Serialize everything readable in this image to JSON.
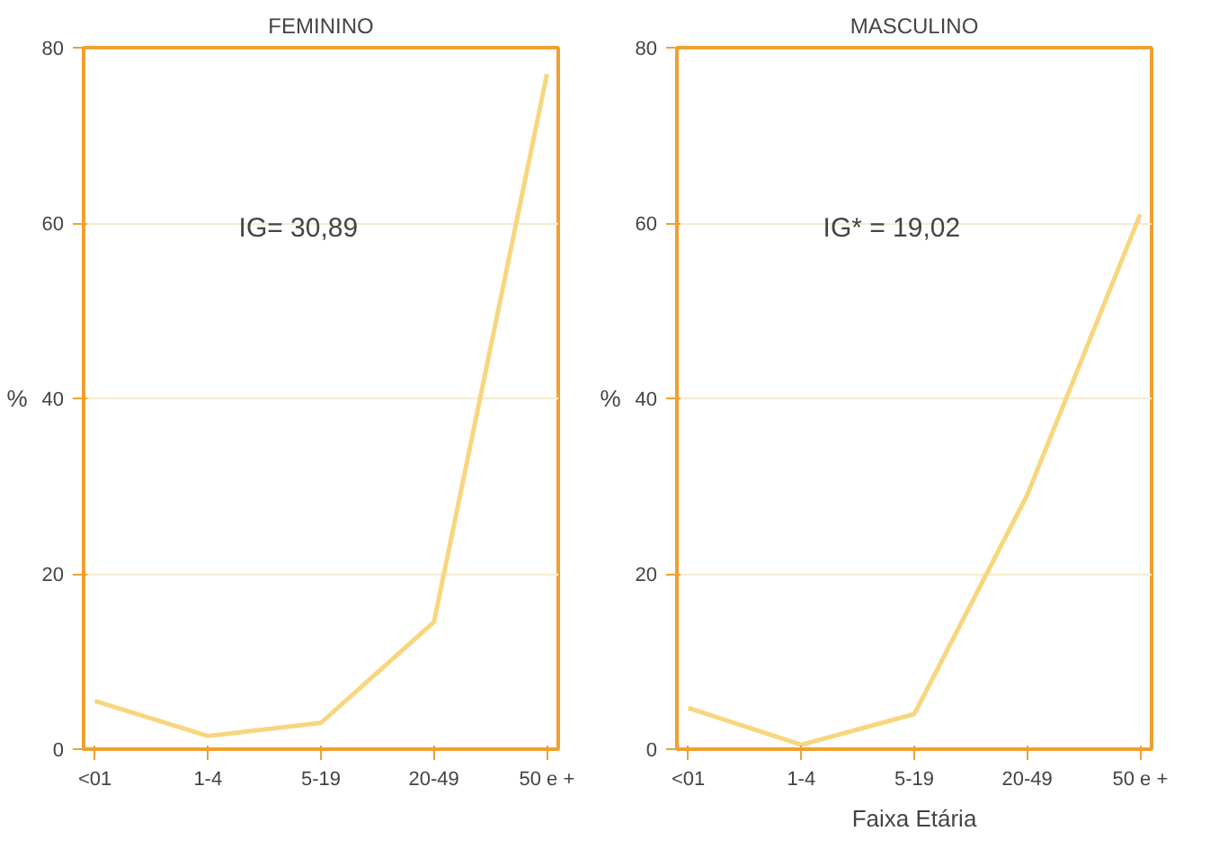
{
  "chart_data": [
    {
      "type": "line",
      "title": "FEMININO",
      "ylabel": "%",
      "categories": [
        "<01",
        "1-4",
        "5-19",
        "20-49",
        "50 e +"
      ],
      "series": [
        {
          "color": "#f7d67e",
          "values": [
            5.5,
            1.5,
            3,
            14.5,
            77
          ]
        }
      ],
      "ylim": [
        0,
        80
      ],
      "yticks": [
        0,
        20,
        40,
        60,
        80
      ],
      "grid": "y",
      "annotations": [
        "IG= 30,89"
      ]
    },
    {
      "type": "line",
      "title": "MASCULINO",
      "ylabel": "%",
      "xlabel": "Faixa Etária",
      "categories": [
        "<01",
        "1-4",
        "5-19",
        "20-49",
        "50 e +"
      ],
      "series": [
        {
          "color": "#f7d67e",
          "values": [
            4.7,
            0.5,
            4,
            29,
            61
          ]
        }
      ],
      "ylim": [
        0,
        80
      ],
      "yticks": [
        0,
        20,
        40,
        60,
        80
      ],
      "grid": "y",
      "annotations": [
        "IG* = 19,02"
      ]
    }
  ]
}
